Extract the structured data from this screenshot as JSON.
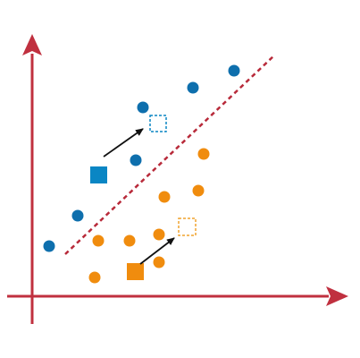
{
  "colors": {
    "axis": "#c0303f",
    "boundary": "#b82a3a",
    "class_a": "#0e6fad",
    "class_a_square": "#0a86c4",
    "class_b": "#f08c0e",
    "arrow": "#111111",
    "background": "#ffffff"
  },
  "elements": {
    "x_axis": "x-axis-arrow",
    "y_axis": "y-axis-arrow",
    "boundary": "decision-boundary-dashed-line",
    "class_a_points": "blue-class-points",
    "class_b_points": "orange-class-points",
    "class_a_original": "blue-original-square",
    "class_a_shifted": "blue-shifted-dashed-square",
    "class_b_original": "orange-original-square",
    "class_b_shifted": "orange-shifted-dashed-square",
    "arrows": "shift-arrows"
  }
}
